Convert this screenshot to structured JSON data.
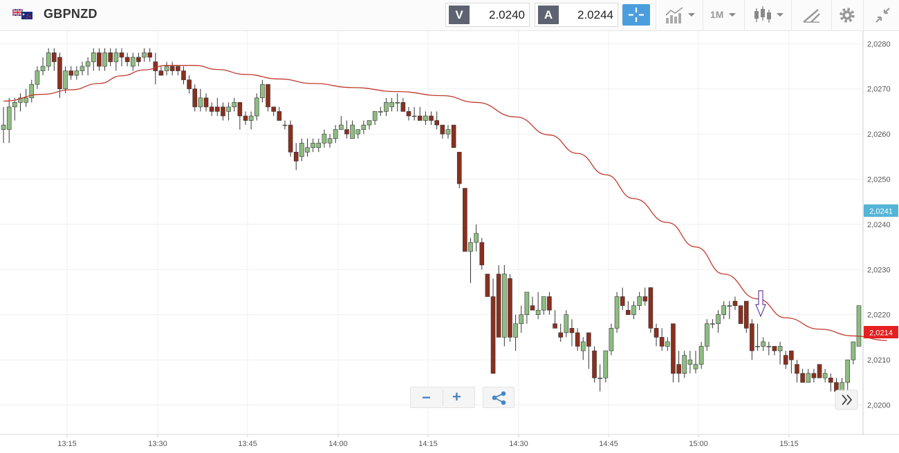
{
  "header": {
    "symbol": "GBPNZD",
    "sell_tag": "V",
    "sell_price": "2.0240",
    "buy_tag": "A",
    "buy_price": "2.0244",
    "timeframe": "1M"
  },
  "zoom_controls": {
    "zoom_out_label": "−",
    "zoom_in_label": "+"
  },
  "icons": [
    "flag-icon",
    "crosshair-icon",
    "chart-type-icon",
    "candles-icon",
    "drawing-tool-icon",
    "gear-icon",
    "collapse-icon",
    "share-icon",
    "scroll-right-icon",
    "arrow-marker-icon"
  ],
  "colors": {
    "bull": "#8fbd82",
    "bear": "#8b2f1e",
    "ma_line": "#c0392b",
    "current_tag": "#e52020",
    "bid_tag": "#55b5d8",
    "accent": "#4a9ede"
  },
  "chart_data": {
    "type": "candlestick",
    "x_ticks": [
      "13:15",
      "13:30",
      "13:45",
      "14:00",
      "14:15",
      "14:30",
      "14:45",
      "15:00",
      "15:15"
    ],
    "y_ticks": [
      "2,0280",
      "2,0270",
      "2,0260",
      "2,0250",
      "2,0240",
      "2,0230",
      "2,0220",
      "2,0210",
      "2,0200"
    ],
    "ylim": [
      2.01935,
      2.02828
    ],
    "current_price_label": "2,0214",
    "bid_price_label": "2,0241",
    "candles_ohlc": [
      [
        2.0261,
        2.0266,
        2.0258,
        2.0262
      ],
      [
        2.0261,
        2.0268,
        2.0258,
        2.0266
      ],
      [
        2.0266,
        2.0268,
        2.0263,
        2.0267
      ],
      [
        2.0267,
        2.0269,
        2.0265,
        2.0268
      ],
      [
        2.0267,
        2.027,
        2.0266,
        2.0268
      ],
      [
        2.0268,
        2.0272,
        2.0267,
        2.0271
      ],
      [
        2.0271,
        2.0275,
        2.027,
        2.0274
      ],
      [
        2.0274,
        2.0277,
        2.0273,
        2.0275
      ],
      [
        2.0275,
        2.0279,
        2.0274,
        2.0278
      ],
      [
        2.0278,
        2.0279,
        2.0274,
        2.0276
      ],
      [
        2.0277,
        2.0278,
        2.0268,
        2.027
      ],
      [
        2.027,
        2.0275,
        2.0269,
        2.0274
      ],
      [
        2.0274,
        2.0275,
        2.0272,
        2.0273
      ],
      [
        2.0273,
        2.0275,
        2.0272,
        2.0274
      ],
      [
        2.0274,
        2.0276,
        2.0273,
        2.0275
      ],
      [
        2.0275,
        2.0277,
        2.0273,
        2.0276
      ],
      [
        2.0276,
        2.0279,
        2.0274,
        2.0278
      ],
      [
        2.0278,
        2.0279,
        2.0274,
        2.0275
      ],
      [
        2.0275,
        2.0279,
        2.0274,
        2.0278
      ],
      [
        2.0278,
        2.0279,
        2.0275,
        2.0276
      ],
      [
        2.0276,
        2.0279,
        2.0274,
        2.0278
      ],
      [
        2.0278,
        2.0279,
        2.0275,
        2.0277
      ],
      [
        2.0277,
        2.0278,
        2.0275,
        2.0276
      ],
      [
        2.0275,
        2.0278,
        2.0274,
        2.0277
      ],
      [
        2.0277,
        2.0278,
        2.0275,
        2.0276
      ],
      [
        2.0277,
        2.0279,
        2.0276,
        2.0278
      ],
      [
        2.0278,
        2.0279,
        2.0276,
        2.0277
      ],
      [
        2.0276,
        2.0278,
        2.0271,
        2.0274
      ],
      [
        2.0274,
        2.0275,
        2.0273,
        2.0273
      ],
      [
        2.0274,
        2.0276,
        2.0273,
        2.0275
      ],
      [
        2.0275,
        2.0276,
        2.0273,
        2.0274
      ],
      [
        2.0275,
        2.0275,
        2.0273,
        2.0274
      ],
      [
        2.0274,
        2.0275,
        2.0271,
        2.0272
      ],
      [
        2.0272,
        2.0273,
        2.0269,
        2.027
      ],
      [
        2.027,
        2.0271,
        2.0265,
        2.0266
      ],
      [
        2.0266,
        2.027,
        2.0265,
        2.0268
      ],
      [
        2.0268,
        2.0269,
        2.0265,
        2.0266
      ],
      [
        2.0266,
        2.0267,
        2.0264,
        2.0265
      ],
      [
        2.0266,
        2.0268,
        2.0264,
        2.0265
      ],
      [
        2.0266,
        2.0267,
        2.0263,
        2.0264
      ],
      [
        2.0265,
        2.0267,
        2.0263,
        2.0266
      ],
      [
        2.0266,
        2.0268,
        2.0265,
        2.0267
      ],
      [
        2.0267,
        2.0266,
        2.0261,
        2.0264
      ],
      [
        2.0264,
        2.0265,
        2.0262,
        2.0263
      ],
      [
        2.0263,
        2.0265,
        2.0261,
        2.0264
      ],
      [
        2.0264,
        2.0269,
        2.0263,
        2.0268
      ],
      [
        2.0268,
        2.0272,
        2.0267,
        2.0271
      ],
      [
        2.0271,
        2.0271,
        2.0265,
        2.0266
      ],
      [
        2.0266,
        2.0266,
        2.0264,
        2.0265
      ],
      [
        2.0265,
        2.0266,
        2.0263,
        2.0263
      ],
      [
        2.0262,
        2.0263,
        2.0261,
        2.0262
      ],
      [
        2.0262,
        2.0263,
        2.0255,
        2.0256
      ],
      [
        2.0256,
        2.0258,
        2.0252,
        2.0254
      ],
      [
        2.0255,
        2.0259,
        2.0254,
        2.0258
      ],
      [
        2.0256,
        2.0259,
        2.0255,
        2.0257
      ],
      [
        2.0257,
        2.0259,
        2.0256,
        2.0258
      ],
      [
        2.0257,
        2.0259,
        2.0256,
        2.0258
      ],
      [
        2.0258,
        2.0261,
        2.0257,
        2.026
      ],
      [
        2.0258,
        2.026,
        2.0257,
        2.0259
      ],
      [
        2.0259,
        2.0262,
        2.0258,
        2.0261
      ],
      [
        2.0261,
        2.0264,
        2.0261,
        2.0262
      ],
      [
        2.0261,
        2.0263,
        2.0259,
        2.026
      ],
      [
        2.0259,
        2.0263,
        2.0259,
        2.0262
      ],
      [
        2.026,
        2.0261,
        2.0259,
        2.0261
      ],
      [
        2.0261,
        2.0263,
        2.026,
        2.0262
      ],
      [
        2.0262,
        2.0263,
        2.0261,
        2.0263
      ],
      [
        2.0263,
        2.0265,
        2.0262,
        2.0265
      ],
      [
        2.0265,
        2.0266,
        2.0264,
        2.0265
      ],
      [
        2.0265,
        2.0268,
        2.0264,
        2.0267
      ],
      [
        2.0266,
        2.0268,
        2.0265,
        2.0267
      ],
      [
        2.0267,
        2.0269,
        2.0265,
        2.0267
      ],
      [
        2.0267,
        2.0268,
        2.0265,
        2.0265
      ],
      [
        2.0265,
        2.0266,
        2.0263,
        2.0264
      ],
      [
        2.0264,
        2.0266,
        2.0263,
        2.0264
      ],
      [
        2.0264,
        2.0266,
        2.0263,
        2.0263
      ],
      [
        2.0263,
        2.0265,
        2.0262,
        2.0264
      ],
      [
        2.0264,
        2.0265,
        2.0262,
        2.0263
      ],
      [
        2.0263,
        2.0265,
        2.0261,
        2.0262
      ],
      [
        2.0262,
        2.0262,
        2.0259,
        2.026
      ],
      [
        2.026,
        2.0262,
        2.0259,
        2.0261
      ],
      [
        2.0262,
        2.0262,
        2.0257,
        2.0257
      ],
      [
        2.0256,
        2.0256,
        2.0248,
        2.0249
      ],
      [
        2.0248,
        2.0248,
        2.0234,
        2.0234
      ],
      [
        2.0234,
        2.0237,
        2.0227,
        2.0236
      ],
      [
        2.0236,
        2.024,
        2.0234,
        2.0238
      ],
      [
        2.0236,
        2.0237,
        2.023,
        2.0231
      ],
      [
        2.0229,
        2.0229,
        2.0224,
        2.0224
      ],
      [
        2.0224,
        2.0228,
        2.0207,
        2.0207
      ],
      [
        2.0229,
        2.0231,
        2.0215,
        2.0215
      ],
      [
        2.0215,
        2.0231,
        2.0213,
        2.0229
      ],
      [
        2.0228,
        2.0229,
        2.0214,
        2.0215
      ],
      [
        2.0215,
        2.022,
        2.0212,
        2.0218
      ],
      [
        2.0218,
        2.0222,
        2.0216,
        2.022
      ],
      [
        2.022,
        2.0225,
        2.0218,
        2.0225
      ],
      [
        2.0222,
        2.0224,
        2.0221,
        2.0221
      ],
      [
        2.022,
        2.0225,
        2.0219,
        2.0221
      ],
      [
        2.0221,
        2.0223,
        2.022,
        2.0224
      ],
      [
        2.0224,
        2.0225,
        2.022,
        2.0221
      ],
      [
        2.0218,
        2.0221,
        2.0217,
        2.0217
      ],
      [
        2.0216,
        2.0218,
        2.0214,
        2.0215
      ],
      [
        2.0216,
        2.0221,
        2.0215,
        2.022
      ],
      [
        2.0217,
        2.0219,
        2.0213,
        2.0216
      ],
      [
        2.0216,
        2.0217,
        2.0212,
        2.0213
      ],
      [
        2.0212,
        2.0215,
        2.021,
        2.0214
      ],
      [
        2.0216,
        2.0216,
        2.0208,
        2.0213
      ],
      [
        2.0212,
        2.0213,
        2.0205,
        2.0206
      ],
      [
        2.0206,
        2.0209,
        2.0203,
        2.0206
      ],
      [
        2.0206,
        2.0212,
        2.0205,
        2.0212
      ],
      [
        2.0212,
        2.0218,
        2.0211,
        2.0217
      ],
      [
        2.0217,
        2.0225,
        2.0216,
        2.0224
      ],
      [
        2.0224,
        2.0226,
        2.0221,
        2.0222
      ],
      [
        2.0221,
        2.0223,
        2.022,
        2.022
      ],
      [
        2.022,
        2.0223,
        2.0219,
        2.0222
      ],
      [
        2.0222,
        2.0225,
        2.0221,
        2.0224
      ],
      [
        2.0224,
        2.0226,
        2.0222,
        2.0223
      ],
      [
        2.0226,
        2.0226,
        2.0216,
        2.0217
      ],
      [
        2.0217,
        2.0218,
        2.0213,
        2.0215
      ],
      [
        2.0215,
        2.0217,
        2.0212,
        2.0213
      ],
      [
        2.0213,
        2.0215,
        2.0212,
        2.0214
      ],
      [
        2.0218,
        2.0218,
        2.0205,
        2.0207
      ],
      [
        2.0209,
        2.0212,
        2.0205,
        2.0207
      ],
      [
        2.0207,
        2.0212,
        2.0206,
        2.0211
      ],
      [
        2.0209,
        2.0212,
        2.0207,
        2.021
      ],
      [
        2.0208,
        2.0212,
        2.0207,
        2.0209
      ],
      [
        2.0209,
        2.0214,
        2.0208,
        2.0213
      ],
      [
        2.0213,
        2.0219,
        2.0212,
        2.0218
      ],
      [
        2.0218,
        2.0219,
        2.0217,
        2.0218
      ],
      [
        2.0218,
        2.0221,
        2.0216,
        2.022
      ],
      [
        2.022,
        2.0223,
        2.0219,
        2.0222
      ],
      [
        2.0222,
        2.0223,
        2.0219,
        2.0222
      ],
      [
        2.0223,
        2.0224,
        2.0221,
        2.0222
      ],
      [
        2.0222,
        2.0222,
        2.0218,
        2.0218
      ],
      [
        2.0223,
        2.0223,
        2.0216,
        2.0217
      ],
      [
        2.0218,
        2.0219,
        2.021,
        2.0212
      ],
      [
        2.0213,
        2.0218,
        2.0212,
        2.0213
      ],
      [
        2.0213,
        2.0215,
        2.0212,
        2.0214
      ],
      [
        2.0213,
        2.0214,
        2.0211,
        2.0213
      ],
      [
        2.0213,
        2.0213,
        2.0211,
        2.0212
      ],
      [
        2.0212,
        2.0214,
        2.0209,
        2.0213
      ],
      [
        2.0211,
        2.0212,
        2.0208,
        2.0209
      ],
      [
        2.0212,
        2.0212,
        2.0207,
        2.021
      ],
      [
        2.0209,
        2.021,
        2.0205,
        2.0207
      ],
      [
        2.0207,
        2.0208,
        2.0205,
        2.0205
      ],
      [
        2.0205,
        2.0208,
        2.0205,
        2.0207
      ],
      [
        2.0207,
        2.0208,
        2.0205,
        2.0206
      ],
      [
        2.0209,
        2.0209,
        2.0206,
        2.0206
      ],
      [
        2.0206,
        2.0208,
        2.0205,
        2.0207
      ],
      [
        2.0206,
        2.0207,
        2.0203,
        2.0205
      ],
      [
        2.0205,
        2.0206,
        2.0203,
        2.0203
      ],
      [
        2.0203,
        2.0206,
        2.0202,
        2.0205
      ],
      [
        2.0205,
        2.021,
        2.0202,
        2.021
      ],
      [
        2.021,
        2.0214,
        2.0209,
        2.0214
      ],
      [
        2.0213,
        2.0222,
        2.0213,
        2.0222
      ]
    ],
    "moving_average": [
      [
        0,
        2.02673
      ],
      [
        7,
        2.02688
      ],
      [
        12,
        2.02698
      ],
      [
        17,
        2.02712
      ],
      [
        21,
        2.02729
      ],
      [
        25,
        2.02742
      ],
      [
        29,
        2.02752
      ],
      [
        34,
        2.02752
      ],
      [
        38,
        2.02743
      ],
      [
        43,
        2.02732
      ],
      [
        49,
        2.02722
      ],
      [
        55,
        2.02712
      ],
      [
        62,
        2.02703
      ],
      [
        70,
        2.02694
      ],
      [
        78,
        2.02685
      ],
      [
        84,
        2.0267
      ],
      [
        91,
        2.02638
      ],
      [
        97,
        2.02598
      ],
      [
        102,
        2.02557
      ],
      [
        107,
        2.0251
      ],
      [
        112,
        2.02457
      ],
      [
        118,
        2.02404
      ],
      [
        123,
        2.0235
      ],
      [
        128,
        2.0229
      ],
      [
        134,
        2.02235
      ],
      [
        139,
        2.02193
      ],
      [
        145,
        2.02168
      ],
      [
        151,
        2.02153
      ],
      [
        157,
        2.02143
      ]
    ]
  }
}
